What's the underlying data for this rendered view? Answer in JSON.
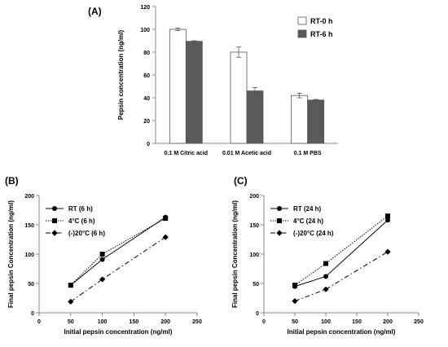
{
  "chart_data": [
    {
      "panel": "(A)",
      "type": "bar",
      "categories": [
        "0.1 M Citric acid",
        "0.01 M Acetic acid",
        "0.1 M PBS"
      ],
      "series": [
        {
          "name": "RT-0 h",
          "values": [
            100,
            80,
            42
          ],
          "errors": [
            1,
            4.5,
            2
          ],
          "color": "#ffffff"
        },
        {
          "name": "RT-6 h",
          "values": [
            89.5,
            46,
            38
          ],
          "errors": [
            0.5,
            3,
            0.5
          ],
          "color": "#595959"
        }
      ],
      "ylabel": "Pepsin concentration (ng/ml)",
      "xlabel": "",
      "ylim": [
        0,
        120
      ],
      "yticks": [
        0,
        20,
        40,
        60,
        80,
        100,
        120
      ],
      "legend": "top-right",
      "grid": false
    },
    {
      "panel": "(B)",
      "type": "line",
      "x": [
        50,
        100,
        200
      ],
      "series": [
        {
          "name": "RT (6 h)",
          "values": [
            47,
            91,
            163
          ],
          "marker": "circle",
          "dash": "solid"
        },
        {
          "name": "4°C (6 h)",
          "values": [
            47,
            100,
            161
          ],
          "marker": "square",
          "dash": "dotted"
        },
        {
          "name": "(-)20°C (6 h)",
          "values": [
            19,
            57,
            129
          ],
          "marker": "diamond",
          "dash": "dashdot"
        }
      ],
      "xlabel": "Initial pepsin concentration (ng/ml)",
      "ylabel": "Final pepsin Concentration (ng/ml)",
      "xlim": [
        0,
        250
      ],
      "xticks": [
        0,
        50,
        100,
        150,
        200,
        250
      ],
      "ylim": [
        0,
        200
      ],
      "yticks": [
        0,
        50,
        100,
        150,
        200
      ],
      "legend": "top-left",
      "grid": false
    },
    {
      "panel": "(C)",
      "type": "line",
      "x": [
        50,
        100,
        200
      ],
      "series": [
        {
          "name": "RT (24 h)",
          "values": [
            45,
            62,
            158
          ],
          "marker": "circle",
          "dash": "solid"
        },
        {
          "name": "4°C (24 h)",
          "values": [
            47,
            84,
            165
          ],
          "marker": "square",
          "dash": "dotted"
        },
        {
          "name": "(-)20°C (24 h)",
          "values": [
            20,
            40,
            104
          ],
          "marker": "diamond",
          "dash": "dashdot"
        }
      ],
      "xlabel": "Initial pepsin concentration (ng/ml)",
      "ylabel": "Final pepsin Concentration (ng/ml)",
      "xlim": [
        0,
        250
      ],
      "xticks": [
        0,
        50,
        100,
        150,
        200,
        250
      ],
      "ylim": [
        0,
        200
      ],
      "yticks": [
        0,
        50,
        100,
        150,
        200
      ],
      "legend": "top-left",
      "grid": false
    }
  ]
}
